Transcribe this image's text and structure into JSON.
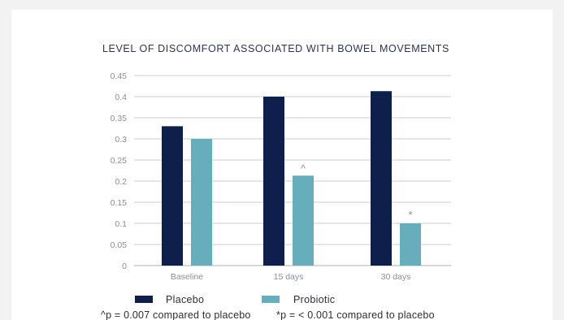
{
  "chart_data": {
    "type": "bar",
    "title": "LEVEL OF DISCOMFORT ASSOCIATED WITH BOWEL MOVEMENTS",
    "categories": [
      "Baseline",
      "15 days",
      "30 days"
    ],
    "series": [
      {
        "name": "Placebo",
        "values": [
          0.33,
          0.4,
          0.413
        ],
        "color": "#0d1f4a",
        "markers": [
          "",
          "",
          ""
        ]
      },
      {
        "name": "Probiotic",
        "values": [
          0.3,
          0.213,
          0.1
        ],
        "color": "#66aebb",
        "markers": [
          "",
          "^",
          "*"
        ]
      }
    ],
    "ylim": [
      0,
      0.45
    ],
    "yticks": [
      "0",
      "0.05",
      "0.1",
      "0.15",
      "0.2",
      "0.25",
      "0.3",
      "0.35",
      "0.4",
      "0.45"
    ],
    "grid": true,
    "legend_placement": "bottom-left"
  },
  "footnotes": {
    "caret": "^p = 0.007 compared to placebo",
    "star": "*p = < 0.001 compared to placebo"
  }
}
